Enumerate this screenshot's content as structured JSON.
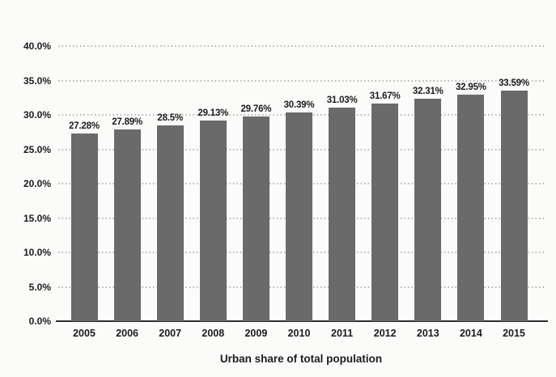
{
  "page": {
    "background_color": "#fbfbf9"
  },
  "chart_data": {
    "type": "bar",
    "title": "Urban share of total population",
    "categories": [
      "2005",
      "2006",
      "2007",
      "2008",
      "2009",
      "2010",
      "2011",
      "2012",
      "2013",
      "2014",
      "2015"
    ],
    "values": [
      27.28,
      27.89,
      28.5,
      29.13,
      29.76,
      30.39,
      31.03,
      31.67,
      32.31,
      32.95,
      33.59
    ],
    "bar_labels": [
      "27.28%",
      "27.89%",
      "28.5%",
      "29.13%",
      "29.76%",
      "30.39%",
      "31.03%",
      "31.67%",
      "32.31%",
      "32.95%",
      "33.59%"
    ],
    "y_ticks": [
      "0.0%",
      "5.0%",
      "10.0%",
      "15.0%",
      "20.0%",
      "25.0%",
      "30.0%",
      "35.0%",
      "40.0%"
    ],
    "y_tick_values": [
      0,
      5,
      10,
      15,
      20,
      25,
      30,
      35,
      40
    ],
    "ylim": [
      0,
      40
    ],
    "xlabel": "",
    "ylabel": "",
    "legend": "none",
    "grid": "horizontal-dotted",
    "bar_color": "#6a6a6a",
    "grid_color": "#aeaeae",
    "axis_color": "#2e2e2e",
    "text_color": "#1b1b1b"
  }
}
